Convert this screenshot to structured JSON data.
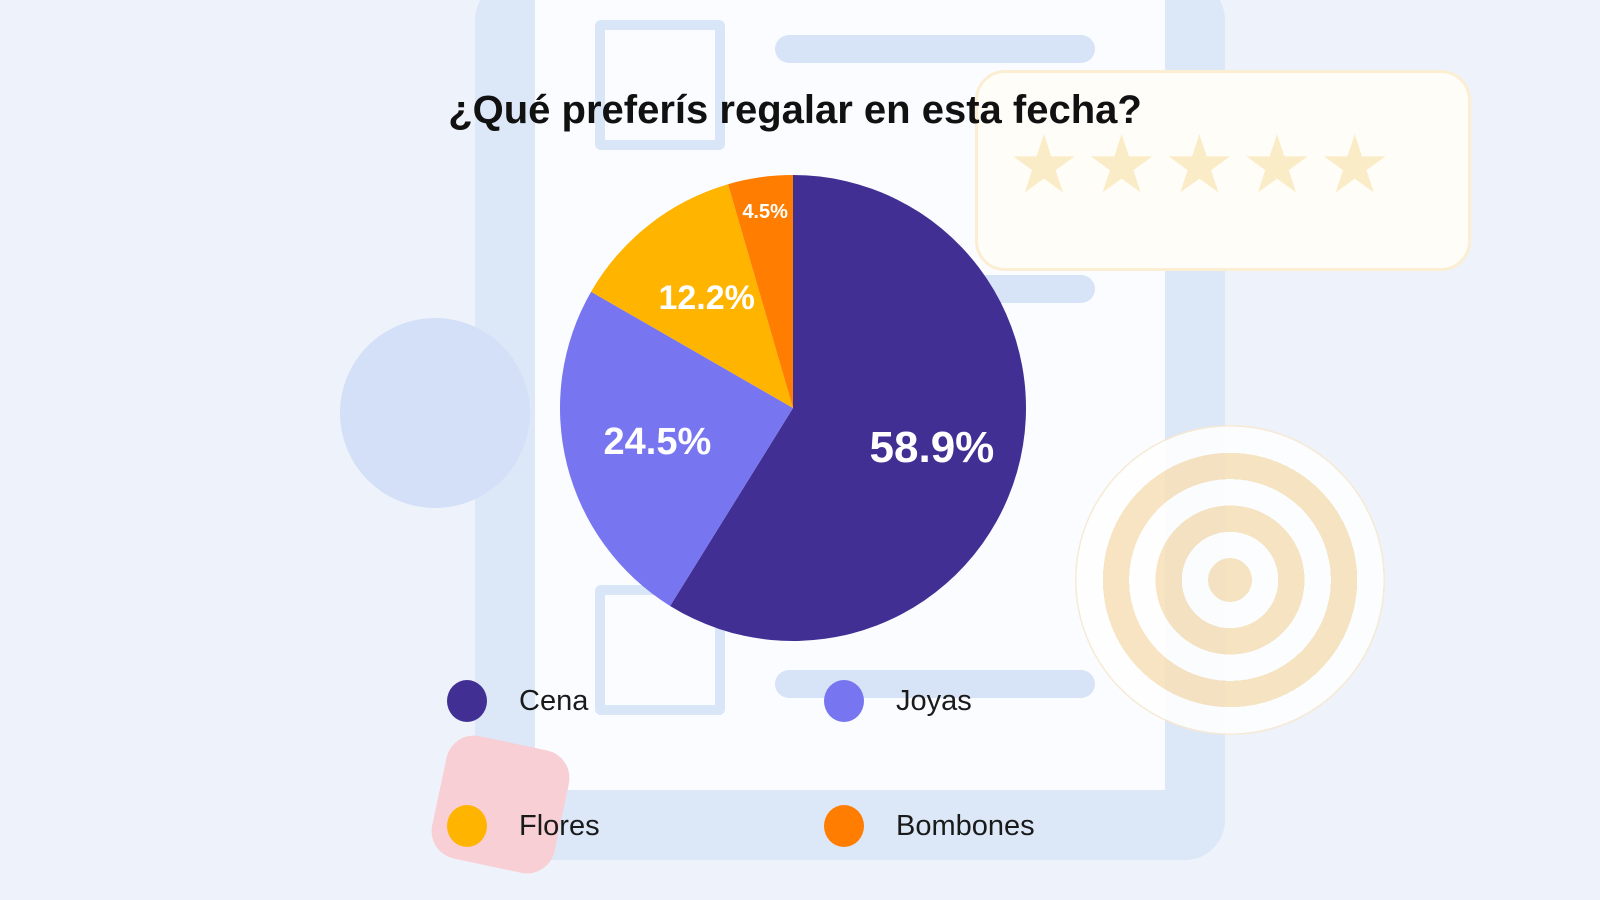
{
  "chart_data": {
    "type": "pie",
    "title": "¿Qué preferís regalar en esta fecha?",
    "categories": [
      "Cena",
      "Joyas",
      "Flores",
      "Bombones"
    ],
    "values": [
      58.9,
      24.5,
      12.2,
      4.5
    ],
    "labels": [
      "58.9%",
      "24.5%",
      "12.2%",
      "4.5%"
    ],
    "colors": [
      "#412f94",
      "#7775f0",
      "#ffb400",
      "#ff7d00"
    ],
    "start_angle_deg": 0,
    "direction": "clockwise",
    "legend_position": "bottom"
  }
}
